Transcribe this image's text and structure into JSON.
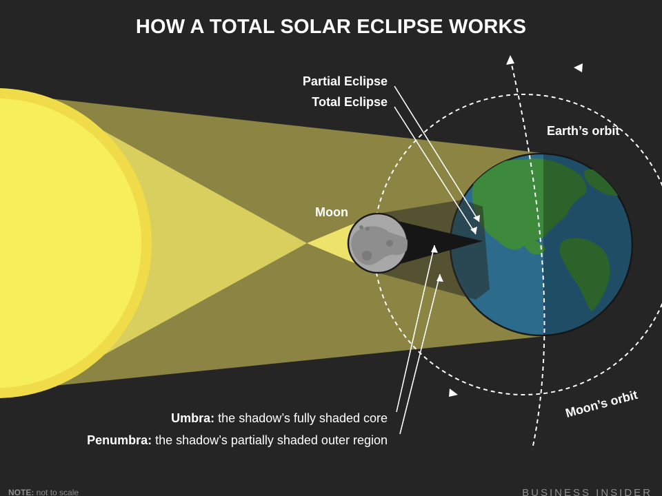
{
  "title": "HOW A TOTAL SOLAR ECLIPSE WORKS",
  "labels": {
    "partial_eclipse": "Partial Eclipse",
    "total_eclipse": "Total Eclipse",
    "earths_orbit": "Earth’s orbit",
    "moon": "Moon",
    "moons_orbit": "Moon’s orbit",
    "umbra_term": "Umbra:",
    "umbra_desc": " the shadow’s fully shaded core",
    "penumbra_term": "Penumbra:",
    "penumbra_desc": " the shadow’s partially shaded outer region"
  },
  "footer": {
    "note_term": "NOTE:",
    "note_text": " not to scale",
    "brand": "BUSINESS INSIDER"
  },
  "colors": {
    "background": "#252525",
    "sun": "#f7ee5c",
    "sun_rim": "#f0dc48",
    "light_cone": "#8b8442",
    "inner_cone": "#eee36a",
    "shadow": "#1e1e1e",
    "moon": "#a8a8a8",
    "earth_ocean": "#2c6b8c",
    "earth_land": "#3d8a3c",
    "orbit_line": "#ffffff"
  }
}
